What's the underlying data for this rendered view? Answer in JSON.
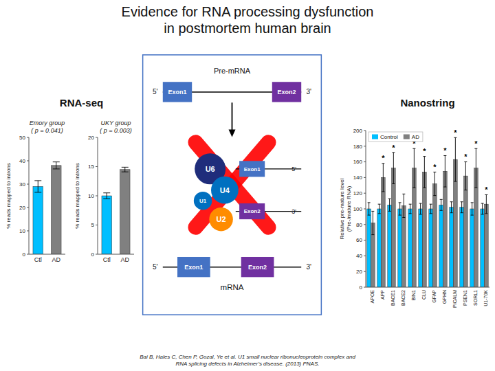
{
  "chart_data": [
    {
      "type": "figure",
      "title": "Evidence for RNA processing dysfunction\nin postmortem human brain",
      "annotations": [
        "RNA-seq",
        "Bai B, Hales C, Chen P, Gozal, Ye et al. U1 small nuclear ribonucleoprotein complex and\nRNA splicing defects in Alzheimer’s disease. (2013) PNAS."
      ]
    },
    {
      "type": "bar",
      "title": "Emory group\n( p = 0.041)",
      "categories": [
        "Ctl",
        "AD"
      ],
      "values": [
        29,
        38
      ],
      "errors": [
        2.5,
        1.5
      ],
      "colors": [
        "#00BFFF",
        "#808080"
      ],
      "ylabel": "% reads mapped to introns",
      "ylim": [
        0,
        50
      ],
      "yticks": [
        0,
        10,
        20,
        30,
        40,
        50
      ],
      "grid": false
    },
    {
      "type": "bar",
      "title": "UKY group\n( p = 0.003)",
      "categories": [
        "Ctl",
        "AD"
      ],
      "values": [
        10,
        14.5
      ],
      "errors": [
        0.5,
        0.4
      ],
      "colors": [
        "#00BFFF",
        "#808080"
      ],
      "ylabel": "% reads mapped to introns",
      "ylim": [
        0,
        20
      ],
      "yticks": [
        0,
        5,
        10,
        15,
        20
      ],
      "grid": false
    },
    {
      "type": "diagram",
      "annotations": [
        "Pre-mRNA",
        "5'",
        "3'",
        "Exon1",
        "Exon2",
        "U6",
        "U4",
        "U1",
        "U2",
        "Exon1",
        "5'",
        "Exon2",
        "3'",
        "5'",
        "3'",
        "Exon1",
        "Exon2",
        "mRNA"
      ]
    },
    {
      "type": "bar",
      "title": "Nanostring",
      "categories": [
        "APOE",
        "APP",
        "BACE1",
        "BACE2",
        "BIN1",
        "CLU",
        "GFAP",
        "GPHN",
        "PICALM",
        "PSEN1",
        "SORL1",
        "U1-70K"
      ],
      "series": [
        {
          "name": "Control",
          "color": "#00BFFF",
          "values": [
            100,
            100,
            105,
            100,
            100,
            100,
            100,
            105,
            102,
            102,
            100,
            100
          ],
          "errors": [
            8,
            6,
            8,
            8,
            6,
            7,
            6,
            7,
            7,
            7,
            8,
            7
          ]
        },
        {
          "name": "AD",
          "color": "#808080",
          "values": [
            82,
            140,
            152,
            104,
            152,
            147,
            132,
            148,
            163,
            142,
            152,
            106
          ],
          "errors": [
            15,
            18,
            20,
            15,
            25,
            20,
            15,
            20,
            28,
            18,
            25,
            12
          ],
          "annotations": [
            null,
            "*",
            "*",
            null,
            "*",
            "*",
            "*",
            "*",
            "*",
            "*",
            "*",
            "*"
          ]
        }
      ],
      "ylabel": "Relative pre-mature level\n(Pre-/mature RNA)",
      "ylim": [
        0,
        200
      ],
      "yticks": [
        0,
        20,
        40,
        60,
        80,
        100,
        120,
        140,
        160,
        180,
        200
      ],
      "legend": "upper left",
      "grid": false
    }
  ]
}
